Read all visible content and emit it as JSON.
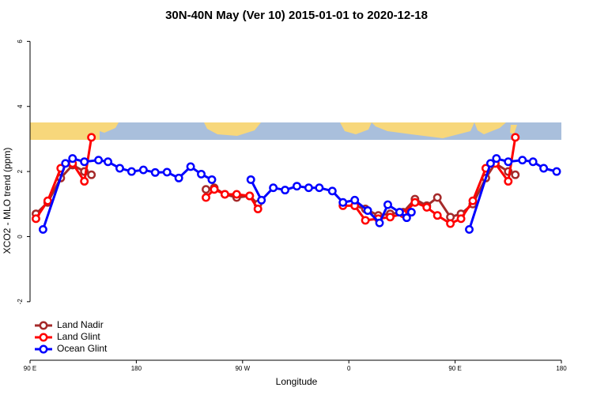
{
  "chart_data": {
    "type": "line",
    "title": "30N-40N May (Ver 10)   2015-01-01 to 2020-12-18",
    "x_label": "Longitude",
    "y_label": "XCO2 - MLO trend (ppm)",
    "xlim": [
      90,
      540
    ],
    "ylim": [
      -3.8,
      6.3
    ],
    "xticks": [
      {
        "value": 90,
        "label": "90 E"
      },
      180,
      {
        "value": 270,
        "label": "90 W"
      },
      {
        "value": 360,
        "label": "0"
      },
      {
        "value": 450,
        "label": "90 E"
      },
      {
        "value": 540,
        "label": "180"
      }
    ],
    "yticks": [
      -2,
      0,
      2,
      4,
      6
    ],
    "legend": "bottom-left",
    "series": [
      {
        "name": "Land Nadir",
        "color": "#a52a2a",
        "x": [
          95,
          105,
          116,
          126,
          136,
          142,
          null,
          239,
          246,
          255,
          265,
          276,
          283,
          null,
          365,
          374,
          385,
          395,
          406,
          416,
          426,
          435,
          446,
          455,
          465,
          476,
          484,
          495,
          501
        ],
        "values": [
          0.7,
          1.05,
          1.8,
          2.2,
          2.0,
          1.9,
          null,
          1.45,
          1.5,
          1.3,
          1.2,
          1.25,
          1.0,
          null,
          0.95,
          0.85,
          0.65,
          0.7,
          0.75,
          1.15,
          0.95,
          1.2,
          0.6,
          0.7,
          1.0,
          1.8,
          2.25,
          2.0,
          1.9
        ]
      },
      {
        "name": "Land Glint",
        "color": "#ff0000",
        "x": [
          95,
          105,
          116,
          126,
          136,
          142,
          null,
          239,
          246,
          255,
          265,
          276,
          283,
          null,
          355,
          365,
          374,
          385,
          395,
          406,
          416,
          426,
          435,
          446,
          455,
          465,
          476,
          484,
          495,
          501
        ],
        "values": [
          0.55,
          1.1,
          2.1,
          2.25,
          1.7,
          3.05,
          null,
          1.2,
          1.45,
          1.3,
          1.3,
          1.25,
          0.85,
          null,
          0.95,
          0.95,
          0.5,
          0.55,
          0.6,
          0.7,
          1.05,
          0.9,
          0.65,
          0.4,
          0.55,
          1.1,
          2.1,
          2.25,
          1.7,
          3.05
        ]
      },
      {
        "name": "Ocean Glint",
        "color": "#0000ff",
        "x": [
          101,
          120,
          126,
          136,
          148,
          156,
          166,
          176,
          186,
          196,
          206,
          216,
          226,
          235,
          244,
          null,
          277,
          286,
          296,
          306,
          316,
          326,
          335,
          346,
          355,
          365,
          376,
          386,
          393,
          403,
          409,
          413,
          null,
          462,
          480,
          485,
          495,
          507,
          516,
          525,
          536
        ],
        "values": [
          0.22,
          2.25,
          2.4,
          2.3,
          2.35,
          2.3,
          2.1,
          2.0,
          2.05,
          1.97,
          1.98,
          1.8,
          2.15,
          1.92,
          1.75,
          null,
          1.75,
          1.12,
          1.5,
          1.43,
          1.55,
          1.5,
          1.5,
          1.4,
          1.05,
          1.12,
          0.8,
          0.42,
          0.98,
          0.75,
          0.58,
          0.75,
          null,
          0.22,
          2.25,
          2.4,
          2.3,
          2.35,
          2.3,
          2.1,
          2.0
        ]
      }
    ]
  }
}
